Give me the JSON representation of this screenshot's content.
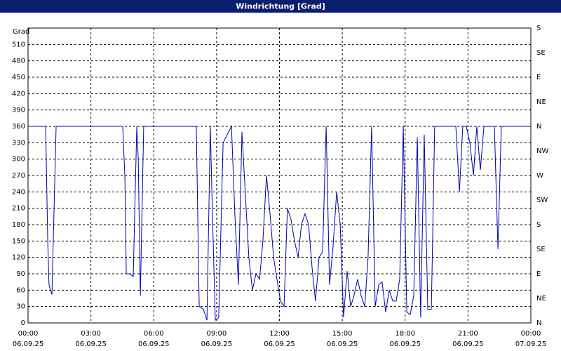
{
  "chart_data": {
    "type": "line",
    "title": "Windrichtung [Grad]",
    "y_label": "Grad",
    "color": "#0000b0",
    "grid": true,
    "ylim": [
      0,
      540
    ],
    "yticks": [
      0,
      30,
      60,
      90,
      120,
      150,
      180,
      210,
      240,
      270,
      300,
      330,
      360,
      390,
      420,
      450,
      480,
      510
    ],
    "y2lim": [
      0,
      540
    ],
    "y2ticks": [
      {
        "value": 0,
        "label": "N"
      },
      {
        "value": 45,
        "label": "NE"
      },
      {
        "value": 90,
        "label": "E"
      },
      {
        "value": 135,
        "label": "SE"
      },
      {
        "value": 180,
        "label": "S"
      },
      {
        "value": 225,
        "label": "SW"
      },
      {
        "value": 270,
        "label": "W"
      },
      {
        "value": 315,
        "label": "NW"
      },
      {
        "value": 360,
        "label": "N"
      },
      {
        "value": 405,
        "label": "NE"
      },
      {
        "value": 450,
        "label": "E"
      },
      {
        "value": 495,
        "label": "SE"
      },
      {
        "value": 540,
        "label": "S"
      }
    ],
    "xlim": [
      0,
      24
    ],
    "xticks": [
      {
        "value": 0,
        "label": "00:00"
      },
      {
        "value": 3,
        "label": "03:00"
      },
      {
        "value": 6,
        "label": "06:00"
      },
      {
        "value": 9,
        "label": "09:00"
      },
      {
        "value": 12,
        "label": "12:00"
      },
      {
        "value": 15,
        "label": "15:00"
      },
      {
        "value": 18,
        "label": "18:00"
      },
      {
        "value": 21,
        "label": "21:00"
      },
      {
        "value": 24,
        "label": "00:00"
      }
    ],
    "xtick_dates": [
      "06.09.25",
      "06.09.25",
      "06.09.25",
      "06.09.25",
      "06.09.25",
      "06.09.25",
      "06.09.25",
      "06.09.25",
      "07.09.25"
    ],
    "x": [
      0,
      0.84,
      0.94,
      1.0,
      1.07,
      1.14,
      1.34,
      4.52,
      4.62,
      4.69,
      4.85,
      5.02,
      5.19,
      5.26,
      5.36,
      5.52,
      8.03,
      8.17,
      8.37,
      8.54,
      8.7,
      8.8,
      8.94,
      9.1,
      9.31,
      9.71,
      9.87,
      10.04,
      10.21,
      10.38,
      10.54,
      10.71,
      10.88,
      11.05,
      11.21,
      11.38,
      11.55,
      11.72,
      11.88,
      12.05,
      12.22,
      12.38,
      12.55,
      12.72,
      12.89,
      13.05,
      13.22,
      13.39,
      13.56,
      13.72,
      13.89,
      14.06,
      14.23,
      14.39,
      14.56,
      14.73,
      14.9,
      15.06,
      15.23,
      15.4,
      15.56,
      15.73,
      15.9,
      16.07,
      16.23,
      16.4,
      16.57,
      16.74,
      16.9,
      17.07,
      17.24,
      17.41,
      17.57,
      17.74,
      17.91,
      18.08,
      18.24,
      18.41,
      18.58,
      18.74,
      18.91,
      19.08,
      19.25,
      19.41,
      20.42,
      20.59,
      20.75,
      20.92,
      21.09,
      21.26,
      21.42,
      21.59,
      21.76,
      22.26,
      22.43,
      22.59,
      24
    ],
    "values": [
      360,
      360,
      150,
      70,
      60,
      52,
      360,
      360,
      270,
      90,
      90,
      85,
      360,
      300,
      50,
      360,
      360,
      30,
      25,
      5,
      360,
      200,
      5,
      10,
      330,
      360,
      200,
      70,
      350,
      230,
      120,
      60,
      90,
      80,
      150,
      270,
      200,
      120,
      80,
      40,
      30,
      210,
      190,
      150,
      120,
      180,
      200,
      180,
      100,
      40,
      120,
      130,
      360,
      70,
      140,
      240,
      180,
      10,
      95,
      30,
      50,
      80,
      50,
      30,
      120,
      360,
      30,
      70,
      75,
      20,
      60,
      40,
      40,
      80,
      360,
      20,
      15,
      50,
      340,
      10,
      345,
      25,
      25,
      360,
      360,
      240,
      360,
      360,
      330,
      270,
      360,
      280,
      360,
      360,
      135,
      360,
      360
    ]
  }
}
